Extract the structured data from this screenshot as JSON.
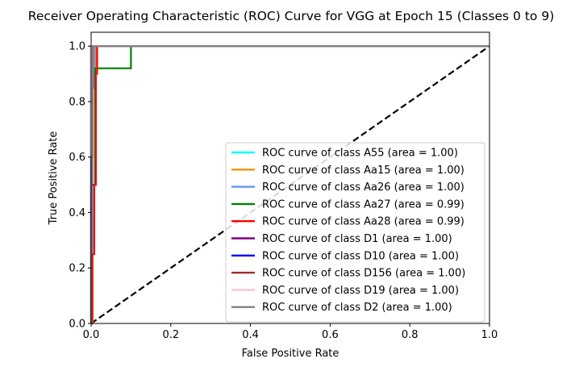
{
  "chart_data": {
    "type": "line",
    "title": "Receiver Operating Characteristic (ROC) Curve for VGG at Epoch 15 (Classes 0 to 9)",
    "xlabel": "False Positive Rate",
    "ylabel": "True Positive Rate",
    "xlim": [
      0.0,
      1.0
    ],
    "ylim": [
      0.0,
      1.05
    ],
    "xticks": [
      "0.0",
      "0.2",
      "0.4",
      "0.6",
      "0.8",
      "1.0"
    ],
    "yticks": [
      "0.0",
      "0.2",
      "0.4",
      "0.6",
      "0.8",
      "1.0"
    ],
    "grid": false,
    "legend_position": "lower-right",
    "reference_line": {
      "x": [
        0,
        1
      ],
      "y": [
        0,
        1
      ],
      "color": "#000000",
      "style": "dashed"
    },
    "series": [
      {
        "name": "ROC curve of class A55 (area = 1.00)",
        "color": "#00ffff",
        "x": [
          0,
          0,
          0.01,
          1
        ],
        "y": [
          0,
          0.8,
          1.0,
          1.0
        ]
      },
      {
        "name": "ROC curve of class Aa15 (area = 1.00)",
        "color": "#ff8c00",
        "x": [
          0,
          0.004,
          0.004,
          0.012,
          0.012,
          1
        ],
        "y": [
          0,
          0,
          0.9,
          0.9,
          1.0,
          1.0
        ]
      },
      {
        "name": "ROC curve of class Aa26 (area = 1.00)",
        "color": "#6495ed",
        "x": [
          0,
          0.003,
          0.003,
          0.008,
          0.008,
          1
        ],
        "y": [
          0,
          0,
          0.85,
          0.85,
          1.0,
          1.0
        ]
      },
      {
        "name": "ROC curve of class Aa27 (area = 0.99)",
        "color": "#008000",
        "x": [
          0,
          0,
          0.01,
          0.01,
          0.1,
          0.1,
          1
        ],
        "y": [
          0,
          0.5,
          0.5,
          0.92,
          0.92,
          1.0,
          1.0
        ]
      },
      {
        "name": "ROC curve of class Aa28 (area = 0.99)",
        "color": "#ff0000",
        "x": [
          0,
          0.003,
          0.003,
          0.008,
          0.008,
          0.012,
          0.012,
          0.015,
          0.015,
          1
        ],
        "y": [
          0,
          0,
          0.25,
          0.25,
          0.5,
          0.5,
          0.9,
          0.9,
          1.0,
          1.0
        ]
      },
      {
        "name": "ROC curve of class D1 (area = 1.00)",
        "color": "#800080",
        "x": [
          0,
          0,
          0.006,
          1
        ],
        "y": [
          0,
          1.0,
          1.0,
          1.0
        ]
      },
      {
        "name": "ROC curve of class D10 (area = 1.00)",
        "color": "#0000ff",
        "x": [
          0,
          0,
          0.006,
          1
        ],
        "y": [
          0,
          1.0,
          1.0,
          1.0
        ]
      },
      {
        "name": "ROC curve of class D156 (area = 1.00)",
        "color": "#a52a2a",
        "x": [
          0,
          0,
          0.006,
          1
        ],
        "y": [
          0,
          1.0,
          1.0,
          1.0
        ]
      },
      {
        "name": "ROC curve of class D19 (area = 1.00)",
        "color": "#ffc0cb",
        "x": [
          0,
          0,
          0.006,
          1
        ],
        "y": [
          0,
          1.0,
          1.0,
          1.0
        ]
      },
      {
        "name": "ROC curve of class D2 (area = 1.00)",
        "color": "#808080",
        "x": [
          0,
          0,
          0.004,
          0.004,
          1
        ],
        "y": [
          0,
          0.6,
          0.6,
          1.0,
          1.0
        ]
      }
    ]
  }
}
